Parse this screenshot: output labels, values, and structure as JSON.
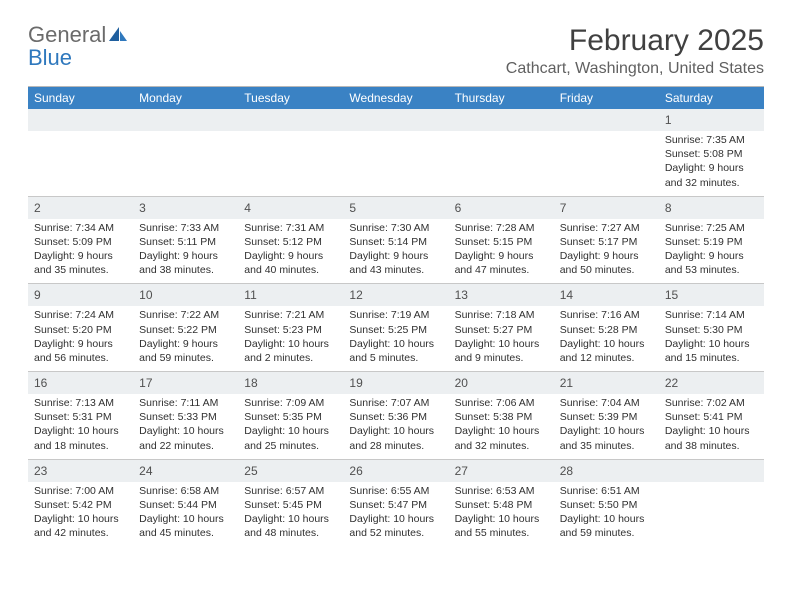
{
  "logo": {
    "text1": "General",
    "text2": "Blue"
  },
  "title": "February 2025",
  "location": "Cathcart, Washington, United States",
  "colors": {
    "header_bg": "#3a82c4",
    "header_text": "#ffffff",
    "daynum_bg": "#eceff1",
    "border": "#c8c8c8",
    "logo_blue": "#2f78bd",
    "logo_gray": "#6b6b6b"
  },
  "days_of_week": [
    "Sunday",
    "Monday",
    "Tuesday",
    "Wednesday",
    "Thursday",
    "Friday",
    "Saturday"
  ],
  "weeks": [
    [
      {
        "n": "",
        "empty": true
      },
      {
        "n": "",
        "empty": true
      },
      {
        "n": "",
        "empty": true
      },
      {
        "n": "",
        "empty": true
      },
      {
        "n": "",
        "empty": true
      },
      {
        "n": "",
        "empty": true
      },
      {
        "n": "1",
        "sunrise": "Sunrise: 7:35 AM",
        "sunset": "Sunset: 5:08 PM",
        "daylight": "Daylight: 9 hours and 32 minutes."
      }
    ],
    [
      {
        "n": "2",
        "sunrise": "Sunrise: 7:34 AM",
        "sunset": "Sunset: 5:09 PM",
        "daylight": "Daylight: 9 hours and 35 minutes."
      },
      {
        "n": "3",
        "sunrise": "Sunrise: 7:33 AM",
        "sunset": "Sunset: 5:11 PM",
        "daylight": "Daylight: 9 hours and 38 minutes."
      },
      {
        "n": "4",
        "sunrise": "Sunrise: 7:31 AM",
        "sunset": "Sunset: 5:12 PM",
        "daylight": "Daylight: 9 hours and 40 minutes."
      },
      {
        "n": "5",
        "sunrise": "Sunrise: 7:30 AM",
        "sunset": "Sunset: 5:14 PM",
        "daylight": "Daylight: 9 hours and 43 minutes."
      },
      {
        "n": "6",
        "sunrise": "Sunrise: 7:28 AM",
        "sunset": "Sunset: 5:15 PM",
        "daylight": "Daylight: 9 hours and 47 minutes."
      },
      {
        "n": "7",
        "sunrise": "Sunrise: 7:27 AM",
        "sunset": "Sunset: 5:17 PM",
        "daylight": "Daylight: 9 hours and 50 minutes."
      },
      {
        "n": "8",
        "sunrise": "Sunrise: 7:25 AM",
        "sunset": "Sunset: 5:19 PM",
        "daylight": "Daylight: 9 hours and 53 minutes."
      }
    ],
    [
      {
        "n": "9",
        "sunrise": "Sunrise: 7:24 AM",
        "sunset": "Sunset: 5:20 PM",
        "daylight": "Daylight: 9 hours and 56 minutes."
      },
      {
        "n": "10",
        "sunrise": "Sunrise: 7:22 AM",
        "sunset": "Sunset: 5:22 PM",
        "daylight": "Daylight: 9 hours and 59 minutes."
      },
      {
        "n": "11",
        "sunrise": "Sunrise: 7:21 AM",
        "sunset": "Sunset: 5:23 PM",
        "daylight": "Daylight: 10 hours and 2 minutes."
      },
      {
        "n": "12",
        "sunrise": "Sunrise: 7:19 AM",
        "sunset": "Sunset: 5:25 PM",
        "daylight": "Daylight: 10 hours and 5 minutes."
      },
      {
        "n": "13",
        "sunrise": "Sunrise: 7:18 AM",
        "sunset": "Sunset: 5:27 PM",
        "daylight": "Daylight: 10 hours and 9 minutes."
      },
      {
        "n": "14",
        "sunrise": "Sunrise: 7:16 AM",
        "sunset": "Sunset: 5:28 PM",
        "daylight": "Daylight: 10 hours and 12 minutes."
      },
      {
        "n": "15",
        "sunrise": "Sunrise: 7:14 AM",
        "sunset": "Sunset: 5:30 PM",
        "daylight": "Daylight: 10 hours and 15 minutes."
      }
    ],
    [
      {
        "n": "16",
        "sunrise": "Sunrise: 7:13 AM",
        "sunset": "Sunset: 5:31 PM",
        "daylight": "Daylight: 10 hours and 18 minutes."
      },
      {
        "n": "17",
        "sunrise": "Sunrise: 7:11 AM",
        "sunset": "Sunset: 5:33 PM",
        "daylight": "Daylight: 10 hours and 22 minutes."
      },
      {
        "n": "18",
        "sunrise": "Sunrise: 7:09 AM",
        "sunset": "Sunset: 5:35 PM",
        "daylight": "Daylight: 10 hours and 25 minutes."
      },
      {
        "n": "19",
        "sunrise": "Sunrise: 7:07 AM",
        "sunset": "Sunset: 5:36 PM",
        "daylight": "Daylight: 10 hours and 28 minutes."
      },
      {
        "n": "20",
        "sunrise": "Sunrise: 7:06 AM",
        "sunset": "Sunset: 5:38 PM",
        "daylight": "Daylight: 10 hours and 32 minutes."
      },
      {
        "n": "21",
        "sunrise": "Sunrise: 7:04 AM",
        "sunset": "Sunset: 5:39 PM",
        "daylight": "Daylight: 10 hours and 35 minutes."
      },
      {
        "n": "22",
        "sunrise": "Sunrise: 7:02 AM",
        "sunset": "Sunset: 5:41 PM",
        "daylight": "Daylight: 10 hours and 38 minutes."
      }
    ],
    [
      {
        "n": "23",
        "sunrise": "Sunrise: 7:00 AM",
        "sunset": "Sunset: 5:42 PM",
        "daylight": "Daylight: 10 hours and 42 minutes."
      },
      {
        "n": "24",
        "sunrise": "Sunrise: 6:58 AM",
        "sunset": "Sunset: 5:44 PM",
        "daylight": "Daylight: 10 hours and 45 minutes."
      },
      {
        "n": "25",
        "sunrise": "Sunrise: 6:57 AM",
        "sunset": "Sunset: 5:45 PM",
        "daylight": "Daylight: 10 hours and 48 minutes."
      },
      {
        "n": "26",
        "sunrise": "Sunrise: 6:55 AM",
        "sunset": "Sunset: 5:47 PM",
        "daylight": "Daylight: 10 hours and 52 minutes."
      },
      {
        "n": "27",
        "sunrise": "Sunrise: 6:53 AM",
        "sunset": "Sunset: 5:48 PM",
        "daylight": "Daylight: 10 hours and 55 minutes."
      },
      {
        "n": "28",
        "sunrise": "Sunrise: 6:51 AM",
        "sunset": "Sunset: 5:50 PM",
        "daylight": "Daylight: 10 hours and 59 minutes."
      },
      {
        "n": "",
        "empty": true
      }
    ]
  ]
}
